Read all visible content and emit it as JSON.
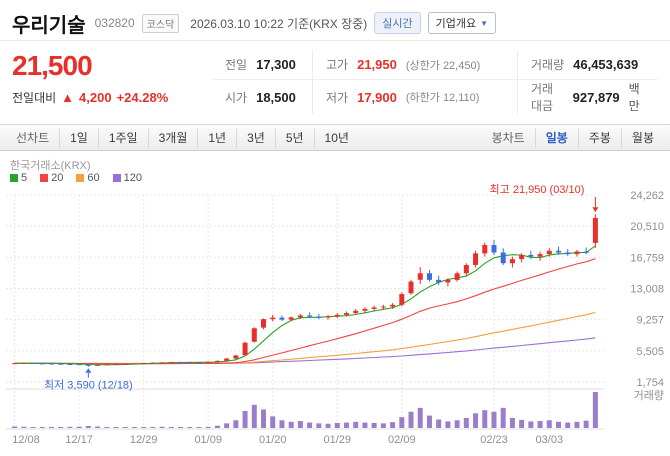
{
  "header": {
    "title": "우리기술",
    "code": "032820",
    "market_badge": "코스닥",
    "datetime": "2026.03.10 10:22",
    "datetime_suffix": "기준(KRX 장중)",
    "realtime_badge": "실시간",
    "overview_button": "기업개요",
    "overview_caret": "▼"
  },
  "price": {
    "current": "21,500",
    "change_label": "전일대비",
    "change_arrow": "▲",
    "change_value": "4,200",
    "change_percent": "+24.28%"
  },
  "info_table": {
    "rows": [
      [
        {
          "label": "전일",
          "value": "17,300"
        },
        {
          "label": "고가",
          "value": "21,950",
          "extra": "(상한가 22,450)"
        },
        {
          "label": "거래량",
          "value": "46,453,639"
        }
      ],
      [
        {
          "label": "시가",
          "value": "18,500"
        },
        {
          "label": "저가",
          "value": "17,900",
          "extra": "(하한가 12,110)"
        },
        {
          "label": "거래대금",
          "value": "927,879",
          "unit": "백만"
        }
      ]
    ]
  },
  "toolbar": {
    "left": [
      "선차트",
      "1일",
      "1주일",
      "3개월",
      "1년",
      "3년",
      "5년",
      "10년"
    ],
    "right": [
      "봉차트",
      "일봉",
      "주봉",
      "월봉"
    ],
    "selected": "일봉"
  },
  "chart_data": {
    "type": "candlestick",
    "exchange_label": "한국거래소(KRX)",
    "volume_label": "거래량",
    "up_color": "#e8302a",
    "down_color": "#3c6ce0",
    "vol_color": "#9b7ec9",
    "ma_padding_close": 4000,
    "ma_legend": [
      {
        "label": "5",
        "window": 5,
        "color": "#27a427"
      },
      {
        "label": "20",
        "window": 20,
        "color": "#f04343"
      },
      {
        "label": "60",
        "window": 60,
        "color": "#f2a13c"
      },
      {
        "label": "120",
        "window": 120,
        "color": "#9d6fd4"
      }
    ],
    "y_axis": {
      "ticks": [
        {
          "label": "24,262",
          "value": 24262
        },
        {
          "label": "20,510",
          "value": 20510
        },
        {
          "label": "16,759",
          "value": 16759
        },
        {
          "label": "13,008",
          "value": 13008
        },
        {
          "label": "9,257",
          "value": 9257
        },
        {
          "label": "5,505",
          "value": 5505
        },
        {
          "label": "1,754",
          "value": 1754
        }
      ]
    },
    "x_axis": {
      "ticks": [
        {
          "label": "12/08",
          "index": 0
        },
        {
          "label": "12/17",
          "index": 7
        },
        {
          "label": "12/29",
          "index": 14
        },
        {
          "label": "01/09",
          "index": 21
        },
        {
          "label": "01/20",
          "index": 28
        },
        {
          "label": "01/29",
          "index": 35
        },
        {
          "label": "02/09",
          "index": 42
        },
        {
          "label": "02/23",
          "index": 52
        },
        {
          "label": "03/03",
          "index": 58
        }
      ]
    },
    "annotation_high": {
      "text": "최고 21,950 (03/10)",
      "index": 63,
      "value": 21950,
      "color": "#e8302a"
    },
    "annotation_low": {
      "text": "최저 3,590 (12/18)",
      "index": 8,
      "value": 3590,
      "color": "#3c6ce0"
    },
    "candles_format": [
      "open",
      "high",
      "low",
      "close",
      "volume_millions"
    ],
    "candles": [
      [
        4000,
        4060,
        3950,
        4020,
        2.0
      ],
      [
        4020,
        4080,
        3960,
        4040,
        1.6
      ],
      [
        4040,
        4070,
        3970,
        4000,
        1.3
      ],
      [
        4000,
        4050,
        3940,
        3980,
        1.1
      ],
      [
        3980,
        4030,
        3900,
        3950,
        1.4
      ],
      [
        3950,
        4010,
        3880,
        3920,
        1.2
      ],
      [
        3920,
        3980,
        3850,
        3900,
        1.5
      ],
      [
        3900,
        3950,
        3800,
        3850,
        1.7
      ],
      [
        3850,
        3900,
        3590,
        3700,
        2.6
      ],
      [
        3700,
        3860,
        3680,
        3830,
        1.9
      ],
      [
        3830,
        3910,
        3790,
        3880,
        1.3
      ],
      [
        3880,
        3950,
        3840,
        3920,
        1.1
      ],
      [
        3920,
        3990,
        3880,
        3950,
        0.9
      ],
      [
        3950,
        4010,
        3900,
        3980,
        0.8
      ],
      [
        3980,
        4060,
        3930,
        4030,
        1.2
      ],
      [
        4030,
        4110,
        3990,
        4080,
        1.4
      ],
      [
        4080,
        4160,
        4030,
        4120,
        1.6
      ],
      [
        4120,
        4190,
        4060,
        4150,
        1.3
      ],
      [
        4150,
        4210,
        4090,
        4130,
        1.1
      ],
      [
        4130,
        4190,
        4070,
        4110,
        1.0
      ],
      [
        4110,
        4170,
        4050,
        4100,
        1.1
      ],
      [
        4100,
        4210,
        4060,
        4180,
        1.5
      ],
      [
        4180,
        4350,
        4120,
        4300,
        3.0
      ],
      [
        4300,
        4650,
        4250,
        4580,
        6.0
      ],
      [
        4580,
        5050,
        4500,
        4950,
        10.0
      ],
      [
        4980,
        6600,
        4900,
        6480,
        22.0
      ],
      [
        6600,
        8350,
        6500,
        8220,
        30.0
      ],
      [
        8300,
        9400,
        8100,
        9320,
        24.0
      ],
      [
        9320,
        9850,
        9050,
        9500,
        15.0
      ],
      [
        9500,
        9780,
        9080,
        9260,
        10.0
      ],
      [
        9260,
        9640,
        9060,
        9540,
        8.0
      ],
      [
        9540,
        9940,
        9340,
        9760,
        9.0
      ],
      [
        9760,
        10140,
        9440,
        9620,
        7.0
      ],
      [
        9620,
        9930,
        9340,
        9520,
        6.0
      ],
      [
        9520,
        9840,
        9250,
        9650,
        5.5
      ],
      [
        9650,
        10050,
        9440,
        9840,
        6.5
      ],
      [
        9840,
        10250,
        9640,
        10060,
        7.0
      ],
      [
        10060,
        10540,
        9840,
        10330,
        8.0
      ],
      [
        10330,
        10750,
        10050,
        10550,
        7.0
      ],
      [
        10550,
        10940,
        10240,
        10730,
        6.5
      ],
      [
        10730,
        11050,
        10430,
        10840,
        6.0
      ],
      [
        10840,
        11250,
        10540,
        11050,
        7.5
      ],
      [
        11050,
        12550,
        10850,
        12340,
        14.0
      ],
      [
        12440,
        14060,
        12240,
        13840,
        21.0
      ],
      [
        14060,
        15570,
        13540,
        14840,
        26.0
      ],
      [
        14840,
        15240,
        13840,
        14050,
        16.0
      ],
      [
        14050,
        14550,
        13440,
        13730,
        11.0
      ],
      [
        13730,
        14240,
        13240,
        14040,
        8.5
      ],
      [
        14040,
        15050,
        13840,
        14840,
        10.0
      ],
      [
        14840,
        16050,
        14540,
        15840,
        13.0
      ],
      [
        15840,
        17550,
        15540,
        17240,
        19.0
      ],
      [
        17240,
        18550,
        16840,
        18240,
        23.0
      ],
      [
        18240,
        18850,
        17040,
        17340,
        21.0
      ],
      [
        17340,
        17850,
        15840,
        16050,
        26.0
      ],
      [
        16050,
        16850,
        15540,
        16540,
        13.0
      ],
      [
        16540,
        17250,
        16140,
        17050,
        10.5
      ],
      [
        17050,
        17550,
        16540,
        16840,
        8.5
      ],
      [
        16840,
        17450,
        16340,
        17150,
        9.0
      ],
      [
        17150,
        17850,
        16840,
        17550,
        10.0
      ],
      [
        17550,
        18050,
        17050,
        17340,
        8.0
      ],
      [
        17340,
        17750,
        16940,
        17150,
        7.0
      ],
      [
        17150,
        17650,
        16840,
        17450,
        8.0
      ],
      [
        17450,
        17950,
        17150,
        17300,
        9.5
      ],
      [
        18500,
        21950,
        17900,
        21500,
        46.5
      ]
    ]
  }
}
